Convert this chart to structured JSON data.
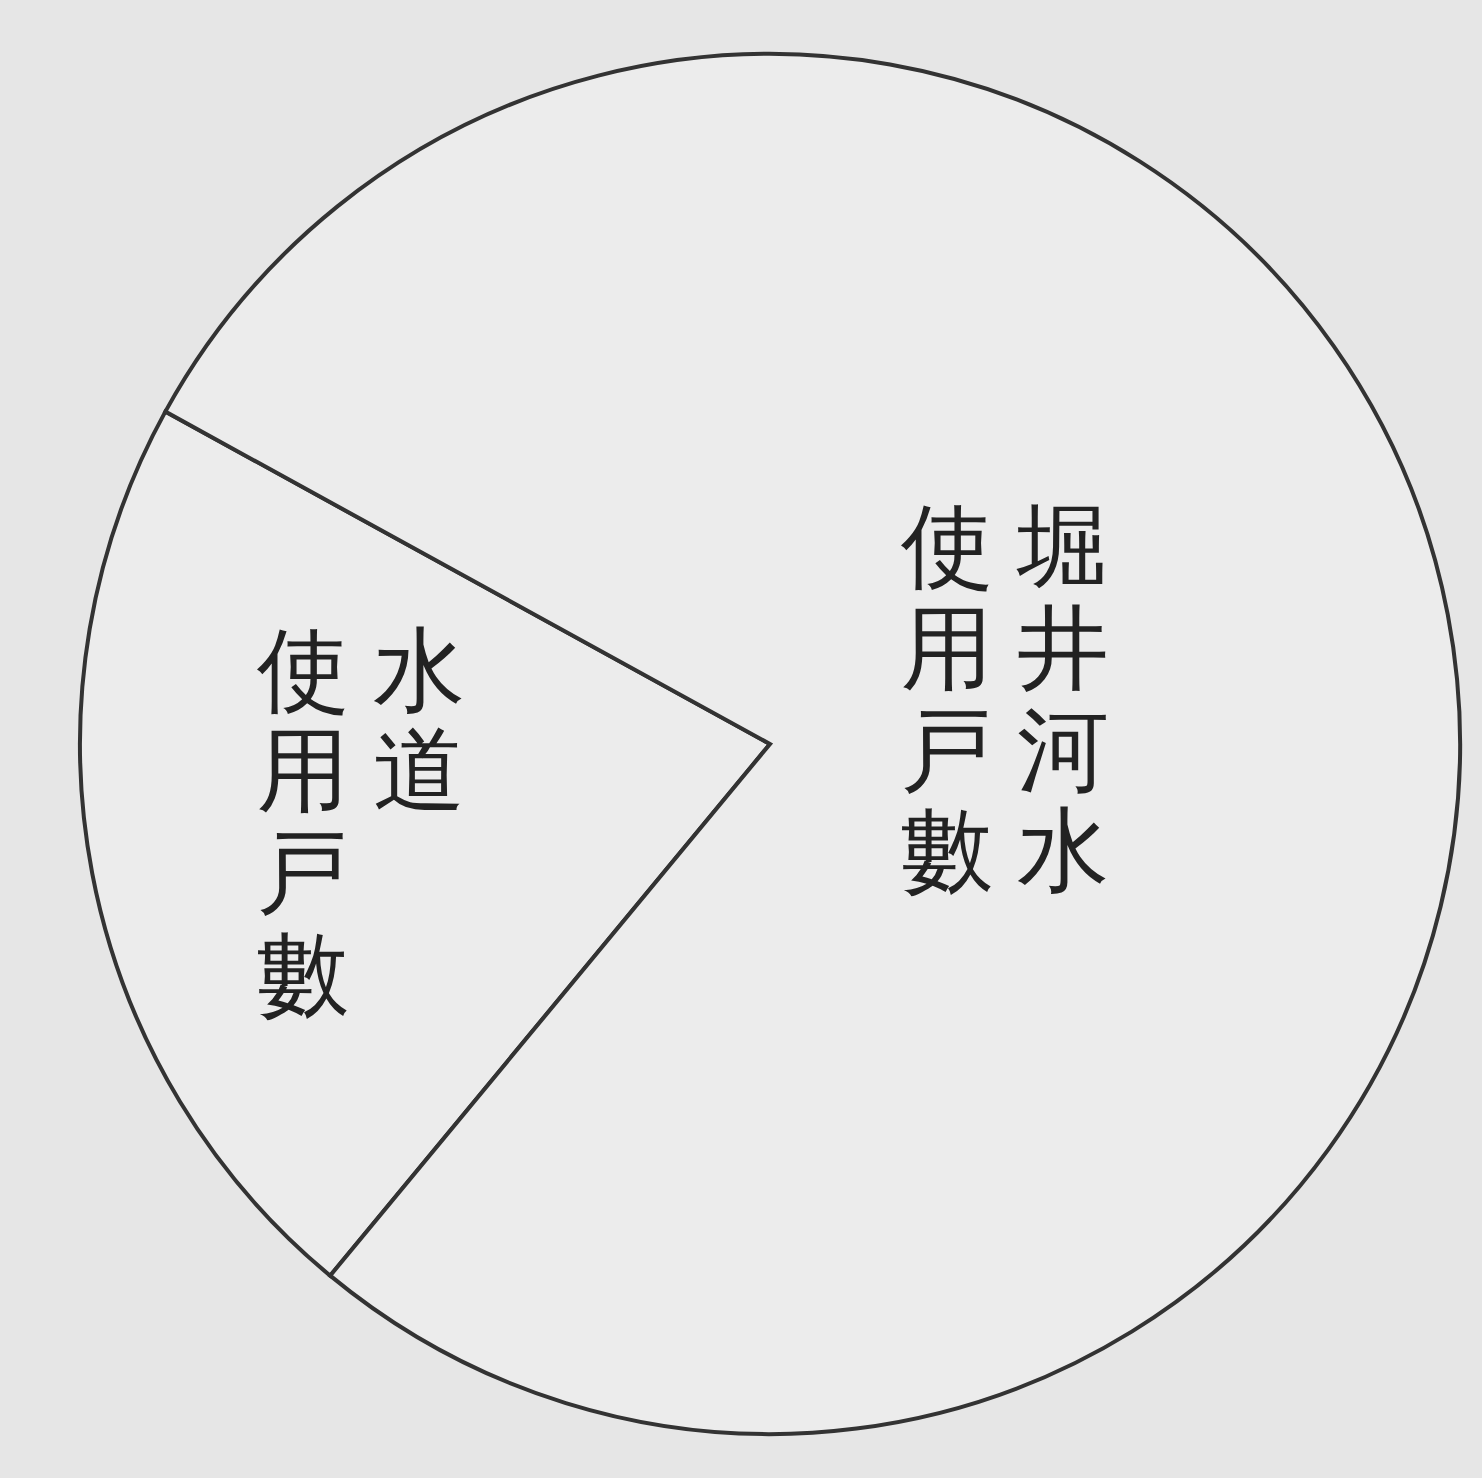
{
  "chart_data": {
    "type": "pie",
    "categories": [
      "水道使用戸數",
      "堀井河水使用戸數"
    ],
    "values": [
      22,
      78
    ],
    "colors": [
      "#ececec",
      "#ececec"
    ]
  }
}
